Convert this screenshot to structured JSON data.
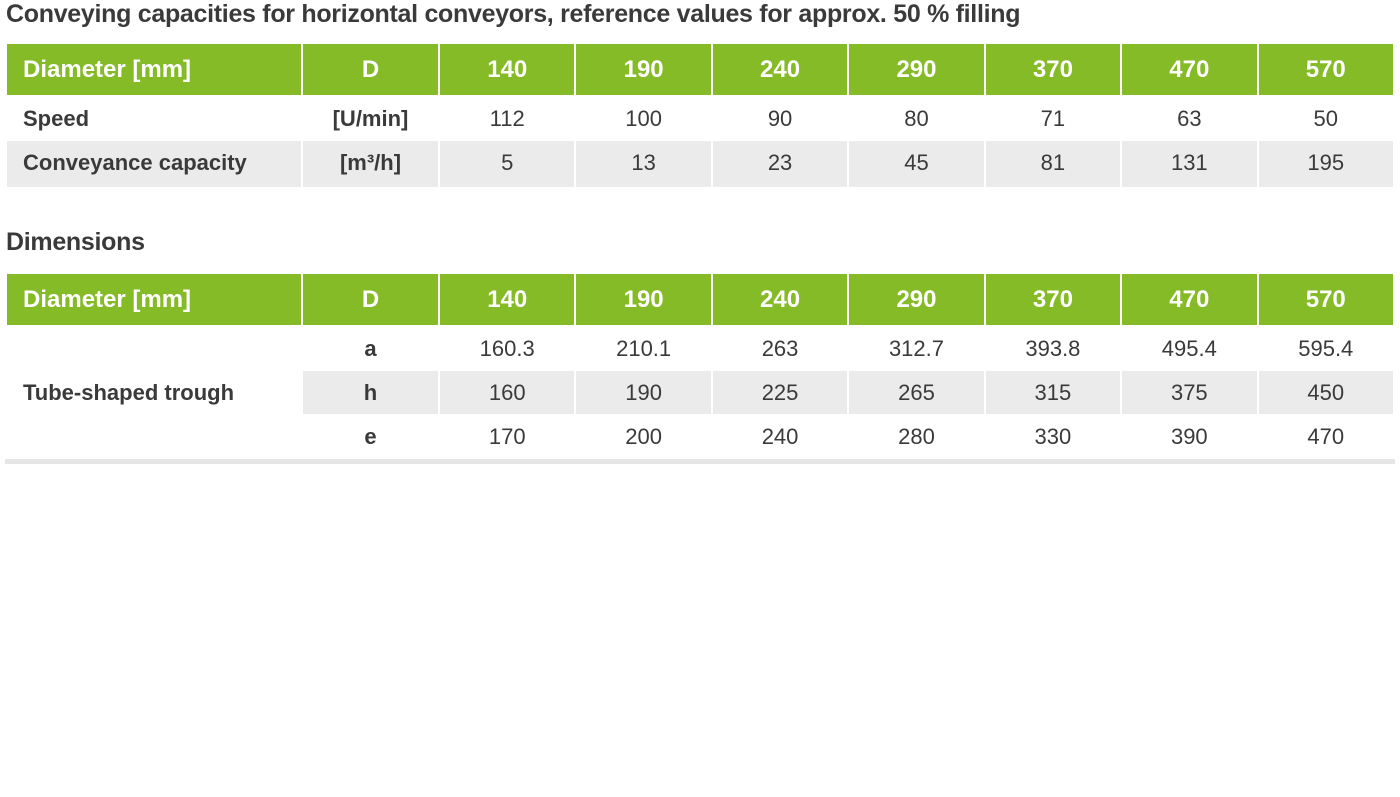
{
  "capacities": {
    "title": "Conveying capacities for horizontal conveyors, reference values for approx. 50 % filling",
    "header": {
      "label": "Diameter [mm]",
      "unit": "D",
      "diameters": [
        "140",
        "190",
        "240",
        "290",
        "370",
        "470",
        "570"
      ]
    },
    "rows": [
      {
        "label": "Speed",
        "unit": "[U/min]",
        "values": [
          "112",
          "100",
          "90",
          "80",
          "71",
          "63",
          "50"
        ]
      },
      {
        "label": "Conveyance capacity",
        "unit": "[m³/h]",
        "values": [
          "5",
          "13",
          "23",
          "45",
          "81",
          "131",
          "195"
        ]
      }
    ]
  },
  "dimensions": {
    "title": "Dimensions",
    "header": {
      "label": "Diameter [mm]",
      "unit": "D",
      "diameters": [
        "140",
        "190",
        "240",
        "290",
        "370",
        "470",
        "570"
      ]
    },
    "group_label": "Tube-shaped trough",
    "rows": [
      {
        "unit": "a",
        "values": [
          "160.3",
          "210.1",
          "263",
          "312.7",
          "393.8",
          "495.4",
          "595.4"
        ]
      },
      {
        "unit": "h",
        "values": [
          "160",
          "190",
          "225",
          "265",
          "315",
          "375",
          "450"
        ]
      },
      {
        "unit": "e",
        "values": [
          "170",
          "200",
          "240",
          "280",
          "330",
          "390",
          "470"
        ]
      }
    ]
  },
  "colors": {
    "header_green": "#84bb27",
    "row_shade": "#ebebeb",
    "text": "#3a3a3a"
  }
}
